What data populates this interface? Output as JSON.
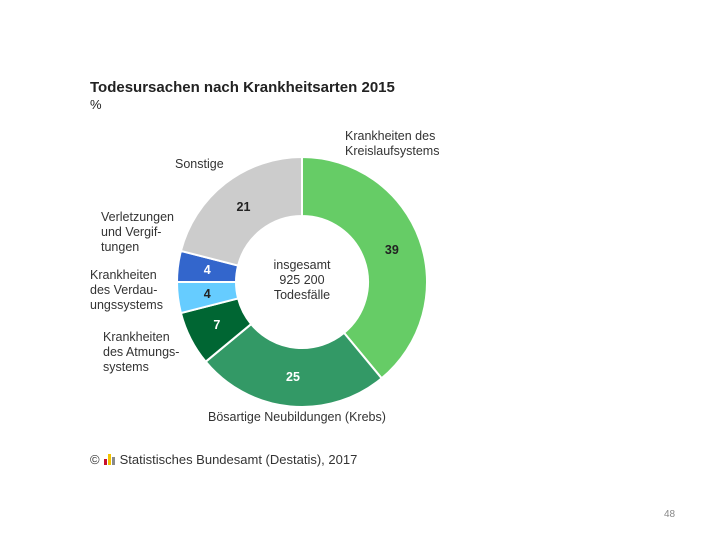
{
  "chart_data": {
    "type": "pie",
    "title": "Todesursachen nach Krankheitsarten 2015",
    "subtitle": "%",
    "center_label": [
      "insgesamt",
      "925 200",
      "Todesfälle"
    ],
    "slices": [
      {
        "key": "kreislauf",
        "label": [
          "Krankheiten des",
          "Kreislaufsystems"
        ],
        "value": 39,
        "value_label": "39",
        "color": "#66cc66",
        "value_color": "#222222"
      },
      {
        "key": "krebs",
        "label": [
          "Bösartige Neubildungen (Krebs)"
        ],
        "value": 25,
        "value_label": "25",
        "color": "#339966",
        "value_color": "#ffffff"
      },
      {
        "key": "atmung",
        "label": [
          "Krankheiten",
          "des Atmungs-",
          "systems"
        ],
        "value": 7,
        "value_label": "7",
        "color": "#006633",
        "value_color": "#ffffff"
      },
      {
        "key": "verdauung",
        "label": [
          "Krankheiten",
          "des Verdau-",
          "ungssystems"
        ],
        "value": 4,
        "value_label": "4",
        "color": "#66ccff",
        "value_color": "#222222"
      },
      {
        "key": "verletzung",
        "label": [
          "Verletzungen",
          "und Vergif-",
          "tungen"
        ],
        "value": 4,
        "value_label": "4",
        "color": "#3366cc",
        "value_color": "#ffffff"
      },
      {
        "key": "sonstige",
        "label": [
          "Sonstige"
        ],
        "value": 21,
        "value_label": "21",
        "color": "#cccccc",
        "value_color": "#222222"
      }
    ]
  },
  "source": {
    "copyright": "©",
    "text": "Statistisches Bundesamt (Destatis), 2017",
    "logo_colors": [
      "#c8102e",
      "#f2c300",
      "#8a8a8a"
    ]
  },
  "page_number": "48"
}
